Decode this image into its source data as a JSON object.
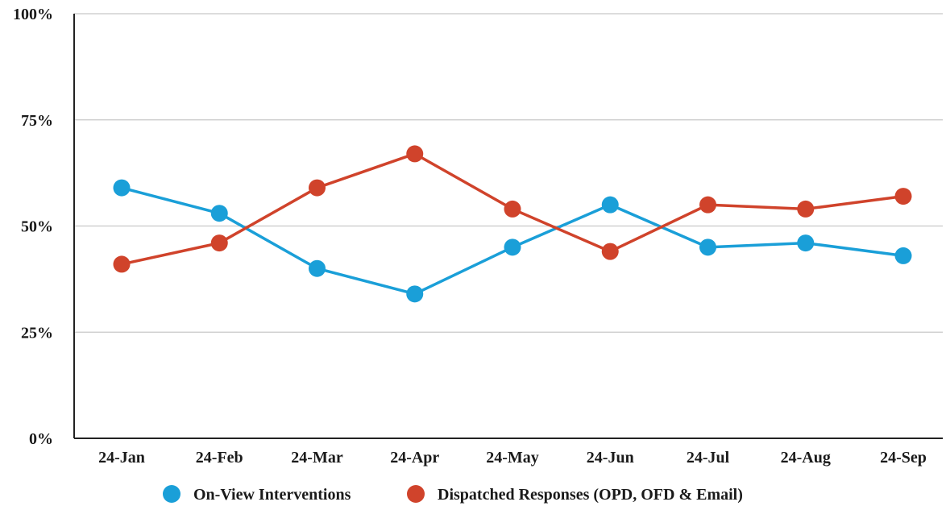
{
  "chart_data": {
    "type": "line",
    "categories": [
      "24-Jan",
      "24-Feb",
      "24-Mar",
      "24-Apr",
      "24-May",
      "24-Jun",
      "24-Jul",
      "24-Aug",
      "24-Sep"
    ],
    "series": [
      {
        "name": "On-View Interventions",
        "color": "#1a9fd8",
        "values": [
          59,
          53,
          40,
          34,
          45,
          55,
          45,
          46,
          43
        ]
      },
      {
        "name": "Dispatched Responses (OPD, OFD & Email)",
        "color": "#d0432b",
        "values": [
          41,
          46,
          59,
          67,
          54,
          44,
          55,
          54,
          57
        ]
      }
    ],
    "ylim": [
      0,
      100
    ],
    "yticks": [
      0,
      25,
      50,
      75,
      100
    ],
    "ytick_labels": [
      "0%",
      "25%",
      "50%",
      "75%",
      "100%"
    ],
    "grid": true,
    "legend_position": "bottom-center",
    "title": "",
    "xlabel": "",
    "ylabel": ""
  }
}
